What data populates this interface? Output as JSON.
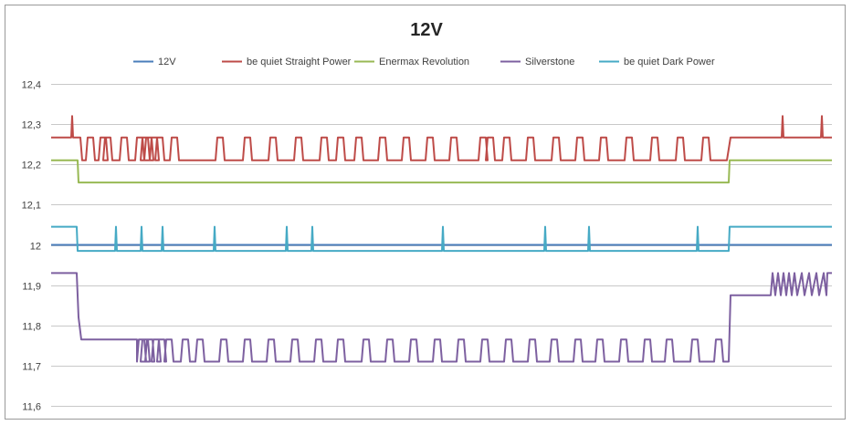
{
  "chart_data": {
    "type": "line",
    "title": "12V",
    "xlabel": "",
    "ylabel": "",
    "ylim": [
      11.6,
      12.4
    ],
    "yticks": [
      "11,6",
      "11,7",
      "11,8",
      "11,9",
      "12",
      "12,1",
      "12,2",
      "12,3",
      "12,4"
    ],
    "ytick_values": [
      11.6,
      11.7,
      11.8,
      11.9,
      12.0,
      12.1,
      12.2,
      12.3,
      12.4
    ],
    "grid": true,
    "legend_position": "top",
    "series": [
      {
        "name": "12V",
        "color": "#4a7ebb",
        "base": 12.0,
        "spike": null,
        "spikes": []
      },
      {
        "name": "be quiet Straight Power",
        "color": "#be4b48",
        "base": 12.21,
        "spike": 12.27,
        "spikes": []
      },
      {
        "name": "Enermax Revolution",
        "color": "#98b954",
        "base": 12.155,
        "spike": null,
        "spikes": []
      },
      {
        "name": "Silverstone",
        "color": "#7d60a0",
        "base": 11.71,
        "spike": 11.765,
        "spikes": []
      },
      {
        "name": "be quiet Dark Power",
        "color": "#46aac5",
        "base": 11.985,
        "spike": 12.045,
        "spikes": []
      }
    ]
  }
}
